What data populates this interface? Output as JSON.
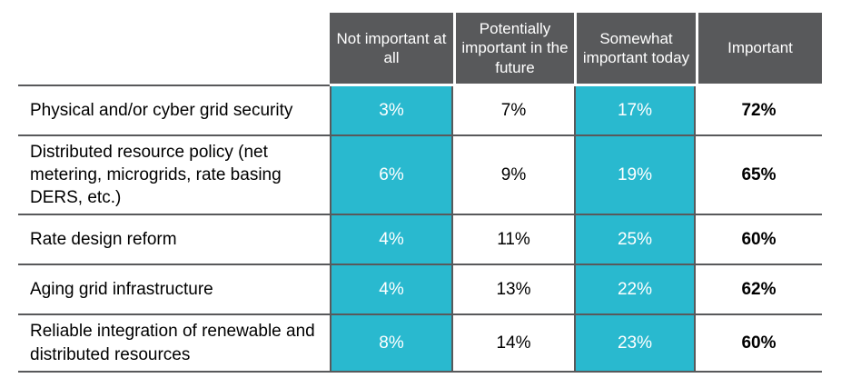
{
  "table": {
    "columns": [
      {
        "label": "Not important at all",
        "style": "teal"
      },
      {
        "label": "Potentially important in the future",
        "style": "plain"
      },
      {
        "label": "Somewhat important today",
        "style": "teal"
      },
      {
        "label": "Important",
        "style": "bold"
      }
    ],
    "rows": [
      {
        "label": "Physical and/or cyber grid security",
        "values": [
          "3%",
          "7%",
          "17%",
          "72%"
        ]
      },
      {
        "label": "Distributed resource policy (net metering, microgrids, rate basing DERS, etc.)",
        "values": [
          "6%",
          "9%",
          "19%",
          "65%"
        ]
      },
      {
        "label": "Rate design reform",
        "values": [
          "4%",
          "11%",
          "25%",
          "60%"
        ]
      },
      {
        "label": "Aging grid infrastructure",
        "values": [
          "4%",
          "13%",
          "22%",
          "62%"
        ]
      },
      {
        "label": "Reliable integration of renewable and distributed resources",
        "values": [
          "8%",
          "14%",
          "23%",
          "60%"
        ]
      }
    ],
    "colors": {
      "highlight_teal": "#29b9cf",
      "header_gray": "#58595b",
      "line_gray": "#58595b",
      "value_text_on_teal": "#ffffff",
      "value_text": "#000000"
    }
  },
  "chart_data": {
    "type": "table",
    "title": "",
    "categories": [
      "Physical and/or cyber grid security",
      "Distributed resource policy (net metering, microgrids, rate basing DERS, etc.)",
      "Rate design reform",
      "Aging grid infrastructure",
      "Reliable integration of renewable and distributed resources"
    ],
    "series": [
      {
        "name": "Not important at all",
        "values": [
          3,
          6,
          4,
          4,
          8
        ]
      },
      {
        "name": "Potentially important in the future",
        "values": [
          7,
          9,
          11,
          13,
          14
        ]
      },
      {
        "name": "Somewhat important today",
        "values": [
          17,
          19,
          25,
          22,
          23
        ]
      },
      {
        "name": "Important",
        "values": [
          72,
          65,
          60,
          62,
          60
        ]
      }
    ],
    "unit": "%",
    "layout": "rows are survey topics, columns are importance ratings; 'Not important at all' and 'Somewhat important today' columns highlighted teal, 'Important' column bold"
  }
}
